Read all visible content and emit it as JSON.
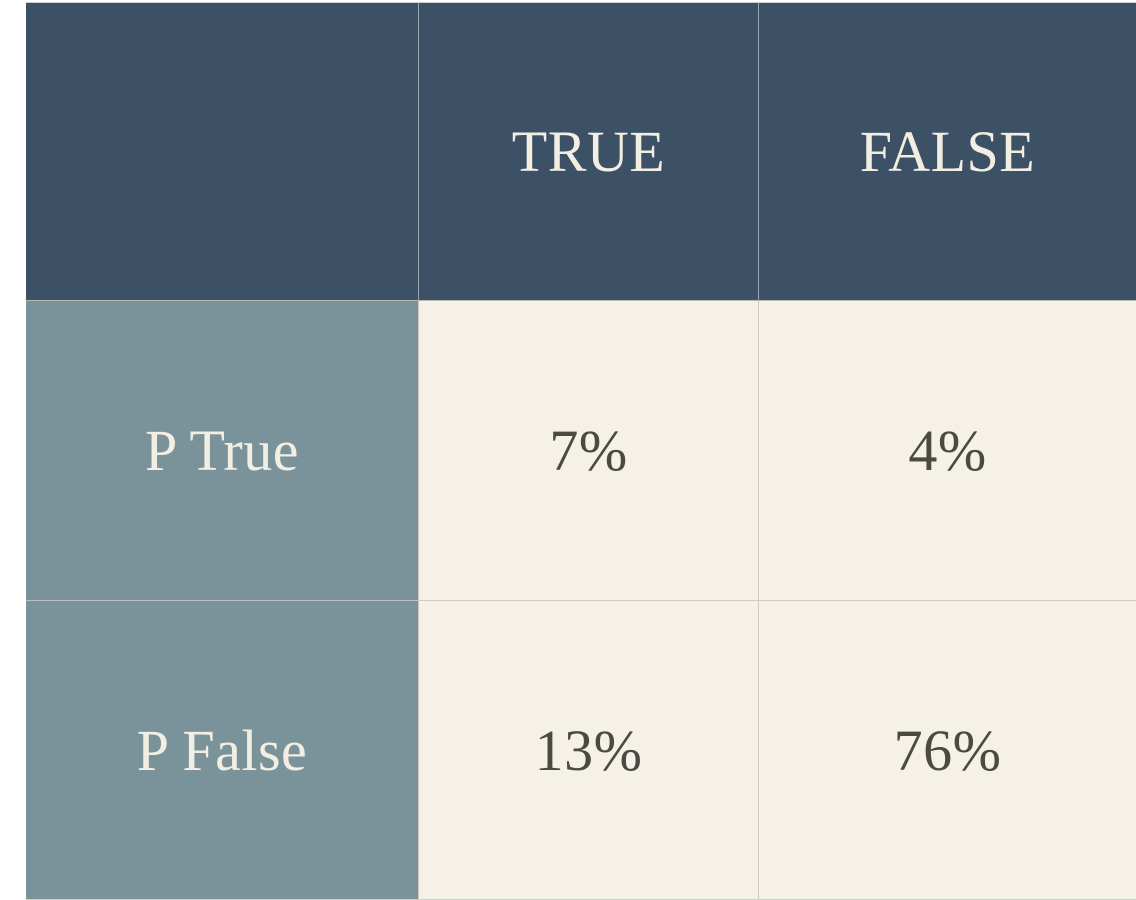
{
  "colors": {
    "header_bg": "#3d5166",
    "row_header_bg": "#7a939b",
    "cell_bg": "#f6f1e7",
    "header_text": "#f3eee2",
    "value_text": "#4a4a45"
  },
  "chart_data": {
    "type": "table",
    "title": "",
    "columns": [
      "TRUE",
      "FALSE"
    ],
    "rows": [
      {
        "label": "P True",
        "values": [
          "7%",
          "4%"
        ]
      },
      {
        "label": "P False",
        "values": [
          "13%",
          "76%"
        ]
      }
    ]
  }
}
